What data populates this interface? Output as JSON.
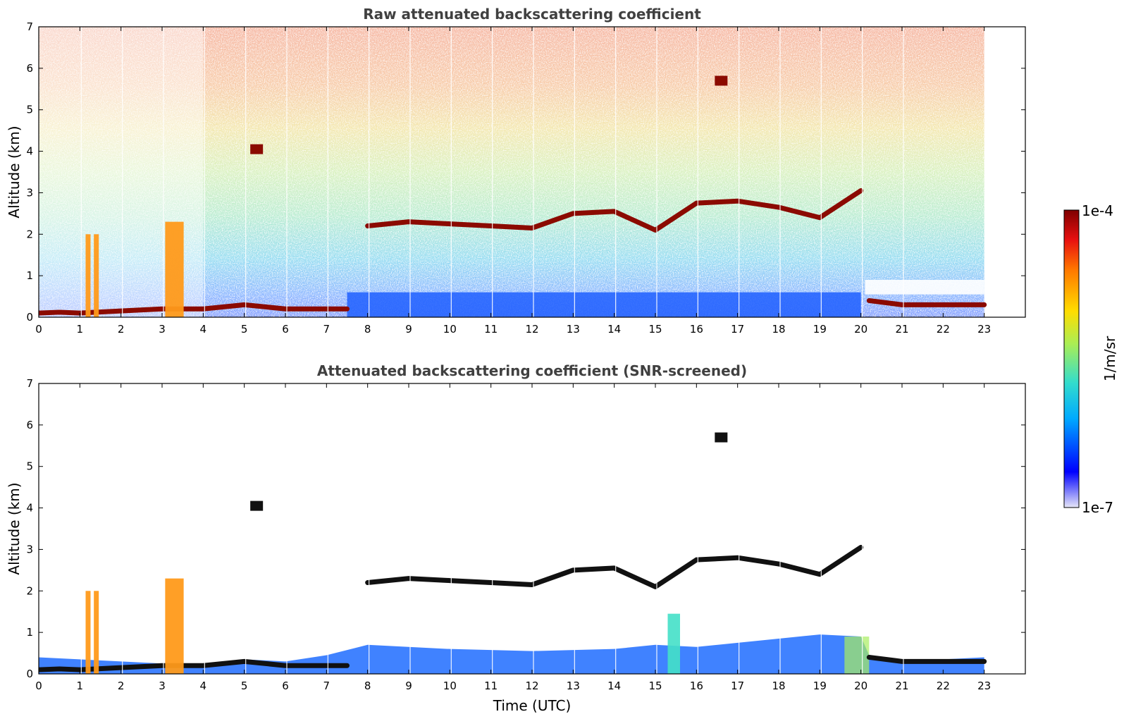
{
  "chart_data": [
    {
      "type": "heatmap",
      "title": "Raw attenuated backscattering coefficient",
      "xlabel": "",
      "ylabel": "Altitude (km)",
      "xlim": [
        0,
        24
      ],
      "ylim": [
        0,
        7
      ],
      "x_ticks": [
        "0",
        "1",
        "2",
        "3",
        "4",
        "5",
        "6",
        "7",
        "8",
        "9",
        "10",
        "11",
        "12",
        "13",
        "14",
        "15",
        "16",
        "17",
        "18",
        "19",
        "20",
        "21",
        "22",
        "23"
      ],
      "y_ticks": [
        "0",
        "1",
        "2",
        "3",
        "4",
        "5",
        "6",
        "7"
      ],
      "data_end_time": 23,
      "features": [
        {
          "name": "surface aerosol layer",
          "x": [
            0,
            0.5,
            1,
            2,
            3,
            4,
            5,
            6,
            7,
            7.5
          ],
          "y": [
            0.1,
            0.12,
            0.1,
            0.15,
            0.2,
            0.2,
            0.3,
            0.2,
            0.2,
            0.2
          ]
        },
        {
          "name": "cloud layer",
          "x": [
            8,
            9,
            10,
            11,
            12,
            13,
            14,
            15,
            16,
            17,
            18,
            19,
            20
          ],
          "y": [
            2.2,
            2.3,
            2.25,
            2.2,
            2.15,
            2.5,
            2.55,
            2.1,
            2.75,
            2.8,
            2.65,
            2.4,
            3.05
          ]
        },
        {
          "name": "evening boundary layer",
          "x": [
            20.2,
            21,
            22,
            23
          ],
          "y": [
            0.4,
            0.3,
            0.3,
            0.3
          ]
        },
        {
          "name": "precipitation shafts",
          "x": [
            1.2,
            1.4,
            3.3
          ],
          "y": [
            2.0,
            2.0,
            2.3
          ]
        },
        {
          "name": "isolated clouds",
          "x": [
            5.3,
            16.6
          ],
          "y": [
            4.05,
            5.7
          ]
        }
      ]
    },
    {
      "type": "heatmap",
      "title": "Attenuated backscattering coefficient (SNR-screened)",
      "xlabel": "Time (UTC)",
      "ylabel": "Altitude (km)",
      "xlim": [
        0,
        24
      ],
      "ylim": [
        0,
        7
      ],
      "x_ticks": [
        "0",
        "1",
        "2",
        "3",
        "4",
        "5",
        "6",
        "7",
        "8",
        "9",
        "10",
        "11",
        "12",
        "13",
        "14",
        "15",
        "16",
        "17",
        "18",
        "19",
        "20",
        "21",
        "22",
        "23"
      ],
      "y_ticks": [
        "0",
        "1",
        "2",
        "3",
        "4",
        "5",
        "6",
        "7"
      ],
      "data_end_time": 23
    }
  ],
  "colorbar": {
    "label": "1/m/sr",
    "min_label": "1e-7",
    "max_label": "1e-4",
    "scale": "log",
    "colors": [
      "#e6e6f7",
      "#0000ff",
      "#00aaff",
      "#33ddcc",
      "#aaee55",
      "#ffdd00",
      "#ff7700",
      "#e81010",
      "#7f0000"
    ]
  }
}
